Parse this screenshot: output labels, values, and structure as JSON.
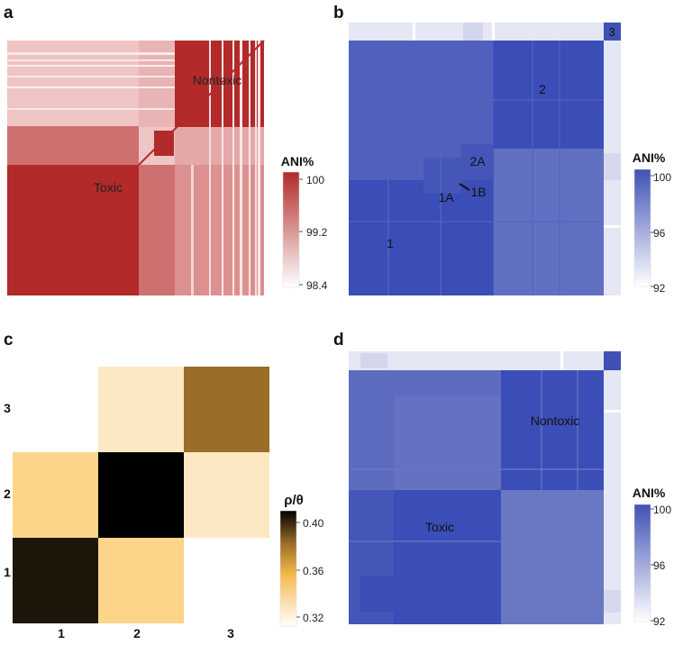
{
  "chart_data": [
    {
      "panel": "a",
      "type": "heatmap",
      "cluster_labels": [
        "Toxic",
        "Nontoxic"
      ],
      "colorbar": {
        "title": "ANI%",
        "ticks": [
          "100",
          "99.2",
          "98.4"
        ],
        "range": [
          98.4,
          100
        ],
        "low_color": "#ffffff",
        "high_color": "#b22a2a"
      }
    },
    {
      "panel": "b",
      "type": "heatmap",
      "cluster_labels": [
        "1",
        "2",
        "3",
        "1A",
        "1B",
        "2A"
      ],
      "colorbar": {
        "title": "ANI%",
        "ticks": [
          "100",
          "96",
          "92"
        ],
        "range": [
          92,
          100
        ],
        "low_color": "#ffffff",
        "high_color": "#3f51b5"
      }
    },
    {
      "panel": "c",
      "type": "heatmap",
      "x_categories": [
        "1",
        "2",
        "3"
      ],
      "y_categories": [
        "1",
        "2",
        "3"
      ],
      "values": [
        {
          "row": "1",
          "col": "1",
          "value": 0.41
        },
        {
          "row": "1",
          "col": "2",
          "value": 0.348
        },
        {
          "row": "2",
          "col": "1",
          "value": 0.348
        },
        {
          "row": "2",
          "col": "2",
          "value": 0.42
        },
        {
          "row": "2",
          "col": "3",
          "value": 0.335
        },
        {
          "row": "3",
          "col": "2",
          "value": 0.335
        },
        {
          "row": "3",
          "col": "3",
          "value": 0.385
        }
      ],
      "colorbar": {
        "title": "ρ/θ",
        "ticks": [
          "0.40",
          "0.36",
          "0.32"
        ],
        "range": [
          0.315,
          0.42
        ]
      }
    },
    {
      "panel": "d",
      "type": "heatmap",
      "cluster_labels": [
        "Nontoxic",
        "Toxic"
      ],
      "colorbar": {
        "title": "ANI%",
        "ticks": [
          "100",
          "96",
          "92"
        ],
        "range": [
          92,
          100
        ],
        "low_color": "#ffffff",
        "high_color": "#3f51b5"
      }
    }
  ],
  "panel_letters": [
    "a",
    "b",
    "c",
    "d"
  ],
  "colors": {
    "red": "#b22a2a",
    "blue": "#3f51b5",
    "c_dark": "#1e1608",
    "c_black": "#000000",
    "c_brown": "#9a6d28",
    "c_mid": "#fcd48a",
    "c_light": "#fde8c4"
  }
}
